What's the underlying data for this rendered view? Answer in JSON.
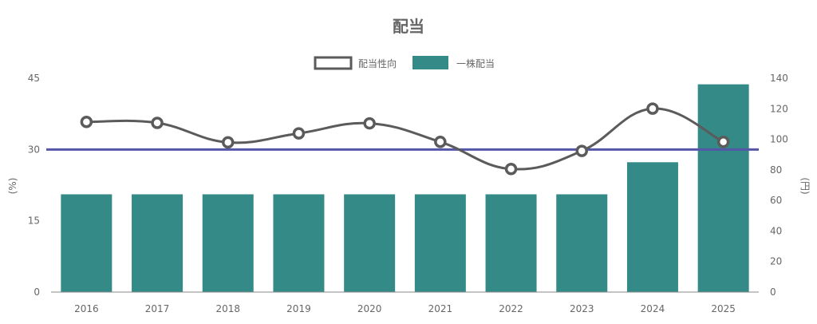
{
  "chart_data": {
    "type": "bar",
    "title": "配当",
    "categories": [
      "2016",
      "2017",
      "2018",
      "2019",
      "2020",
      "2021",
      "2022",
      "2023",
      "2024",
      "2025"
    ],
    "series": [
      {
        "name": "配当性向",
        "type": "line",
        "axis": "left",
        "color": "#5b5b5b",
        "values": [
          35.8,
          35.6,
          31.5,
          33.4,
          35.5,
          31.6,
          25.9,
          29.7,
          38.6,
          31.6
        ]
      },
      {
        "name": "一株配当",
        "type": "bar",
        "axis": "right",
        "color": "#348a87",
        "values": [
          64,
          64,
          64,
          64,
          64,
          64,
          64,
          64,
          85,
          136
        ]
      }
    ],
    "reference_line": {
      "axis": "left",
      "value": 30,
      "color": "#5556a8"
    },
    "y_left": {
      "label": "(%)",
      "ylim": [
        0,
        45
      ],
      "ticks": [
        "0",
        "15",
        "30",
        "45"
      ]
    },
    "y_right": {
      "label": "(円)",
      "ylim": [
        0,
        140
      ],
      "ticks": [
        "0",
        "20",
        "40",
        "60",
        "80",
        "100",
        "120",
        "140"
      ]
    },
    "legend_position": "top-center",
    "grid": false
  }
}
